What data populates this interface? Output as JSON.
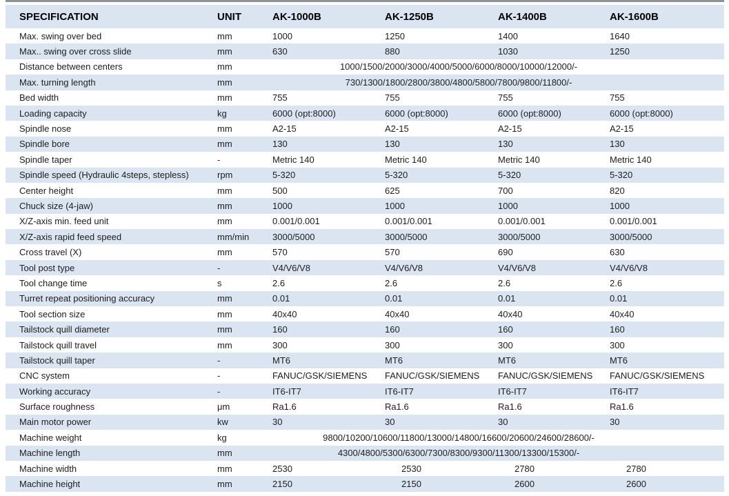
{
  "colors": {
    "highlight_blue": "#dbe5f1",
    "top_border_gray": "#8e9196",
    "text": "#1c1c1e"
  },
  "table": {
    "columns": [
      "SPECIFICATION",
      "UNIT",
      "AK-1000B",
      "AK-1250B",
      "AK-1400B",
      "AK-1600B"
    ],
    "rows": [
      {
        "spec": "Max. swing over bed",
        "unit": "mm",
        "values": [
          "1000",
          "1250",
          "1400",
          "1640"
        ]
      },
      {
        "spec": "Max.. swing over cross slide",
        "unit": "mm",
        "values": [
          "630",
          "880",
          "1030",
          "1250"
        ]
      },
      {
        "spec": "Distance between centers",
        "unit": "mm",
        "span": "1000/1500/2000/3000/4000/5000/6000/8000/10000/12000/-"
      },
      {
        "spec": "Max. turning length",
        "unit": "mm",
        "span": "730/1300/1800/2800/3800/4800/5800/7800/9800/11800/-"
      },
      {
        "spec": "Bed width",
        "unit": "mm",
        "values": [
          "755",
          "755",
          "755",
          "755"
        ]
      },
      {
        "spec": "Loading capacity",
        "unit": "kg",
        "values": [
          "6000 (opt:8000)",
          "6000 (opt:8000)",
          "6000 (opt:8000)",
          "6000 (opt:8000)"
        ]
      },
      {
        "spec": "Spindle nose",
        "unit": "mm",
        "values": [
          "A2-15",
          "A2-15",
          "A2-15",
          "A2-15"
        ]
      },
      {
        "spec": "Spindle bore",
        "unit": "mm",
        "values": [
          "130",
          "130",
          "130",
          "130"
        ]
      },
      {
        "spec": "Spindle taper",
        "unit": "-",
        "values": [
          "Metric 140",
          "Metric 140",
          "Metric 140",
          "Metric 140"
        ]
      },
      {
        "spec": "Spindle speed (Hydraulic 4steps, stepless)",
        "unit": "rpm",
        "values": [
          "5-320",
          "5-320",
          "5-320",
          "5-320"
        ]
      },
      {
        "spec": "Center height",
        "unit": "mm",
        "values": [
          "500",
          "625",
          "700",
          "820"
        ]
      },
      {
        "spec": "Chuck size (4-jaw)",
        "unit": "mm",
        "values": [
          "1000",
          "1000",
          "1000",
          "1000"
        ]
      },
      {
        "spec": "X/Z-axis min. feed unit",
        "unit": "mm",
        "values": [
          "0.001/0.001",
          "0.001/0.001",
          "0.001/0.001",
          "0.001/0.001"
        ]
      },
      {
        "spec": "X/Z-axis rapid feed speed",
        "unit": "mm/min",
        "values": [
          "3000/5000",
          "3000/5000",
          "3000/5000",
          "3000/5000"
        ]
      },
      {
        "spec": "Cross travel (X)",
        "unit": "mm",
        "values": [
          "570",
          "570",
          "690",
          "630"
        ]
      },
      {
        "spec": "Tool post type",
        "unit": "-",
        "values": [
          "V4/V6/V8",
          "V4/V6/V8",
          "V4/V6/V8",
          "V4/V6/V8"
        ]
      },
      {
        "spec": "Tool change time",
        "unit": "s",
        "values": [
          "2.6",
          "2.6",
          "2.6",
          "2.6"
        ]
      },
      {
        "spec": "Turret repeat positioning accuracy",
        "unit": "mm",
        "values": [
          "0.01",
          "0.01",
          "0.01",
          "0.01"
        ]
      },
      {
        "spec": "Tool section size",
        "unit": "mm",
        "values": [
          "40x40",
          "40x40",
          "40x40",
          "40x40"
        ]
      },
      {
        "spec": "Tailstock quill diameter",
        "unit": "mm",
        "values": [
          "160",
          "160",
          "160",
          "160"
        ]
      },
      {
        "spec": "Tailstock quill travel",
        "unit": "mm",
        "values": [
          "300",
          "300",
          "300",
          "300"
        ]
      },
      {
        "spec": "Tailstock quill taper",
        "unit": "-",
        "values": [
          "MT6",
          "MT6",
          "MT6",
          "MT6"
        ]
      },
      {
        "spec": "CNC system",
        "unit": "-",
        "values": [
          "FANUC/GSK/SIEMENS",
          "FANUC/GSK/SIEMENS",
          "FANUC/GSK/SIEMENS",
          "FANUC/GSK/SIEMENS"
        ]
      },
      {
        "spec": "Working accuracy",
        "unit": "-",
        "values": [
          "IT6-IT7",
          "IT6-IT7",
          "IT6-IT7",
          "IT6-IT7"
        ]
      },
      {
        "spec": "Surface roughness",
        "unit": "μm",
        "values": [
          "Ra1.6",
          "Ra1.6",
          "Ra1.6",
          "Ra1.6"
        ]
      },
      {
        "spec": "Main motor power",
        "unit": "kw",
        "values": [
          "30",
          "30",
          "30",
          "30"
        ]
      },
      {
        "spec": "Machine weight",
        "unit": "kg",
        "span": "9800/10200/10600/11800/13000/14800/16600/20600/24600/28600/-"
      },
      {
        "spec": "Machine length",
        "unit": "mm",
        "span": "4300/4800/5300/6300/7300/8300/9300/11300/13300/15300/-"
      },
      {
        "spec": "Machine width",
        "unit": "mm",
        "values": [
          "2530",
          "2530",
          "2780",
          "2780"
        ],
        "indent": true
      },
      {
        "spec": "Machine height",
        "unit": "mm",
        "values": [
          "2150",
          "2150",
          "2600",
          "2600"
        ],
        "indent": true
      }
    ]
  }
}
